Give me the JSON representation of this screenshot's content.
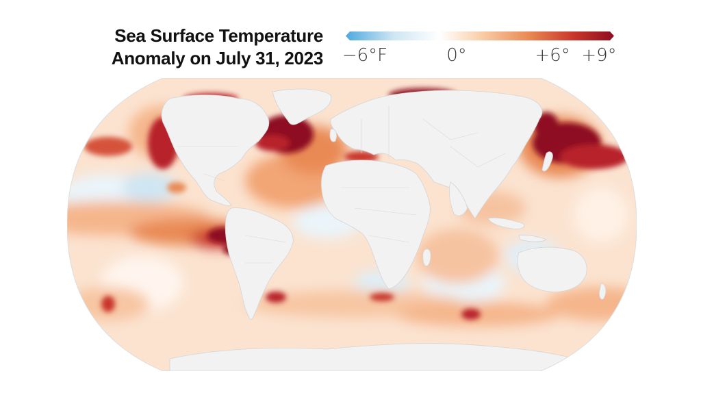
{
  "title": {
    "line1": "Sea Surface Temperature",
    "line2": "Anomaly on July 31, 2023"
  },
  "legend": {
    "labels": [
      "−6°F",
      "0°",
      "+6°",
      "+9°"
    ],
    "gradient_colors": [
      "#4fa9de",
      "#cfe6f3",
      "#ffffff",
      "#f9d0ac",
      "#e98a55",
      "#c8362a",
      "#8e0d20"
    ]
  },
  "map": {
    "projection": "Robinson",
    "ocean_neutral_color": "#fbe3d0",
    "land_color": "#f2f2f2",
    "border_color": "#cfcfcf",
    "hotspots": [
      {
        "region": "North Atlantic",
        "anomaly": "+6° to +9°"
      },
      {
        "region": "Northwest Pacific",
        "anomaly": "+6° to +9°"
      },
      {
        "region": "Eastern Equatorial Pacific",
        "anomaly": "+6°"
      },
      {
        "region": "Mediterranean",
        "anomaly": "+6°"
      },
      {
        "region": "Southern Ocean",
        "anomaly": "+6°"
      }
    ]
  }
}
